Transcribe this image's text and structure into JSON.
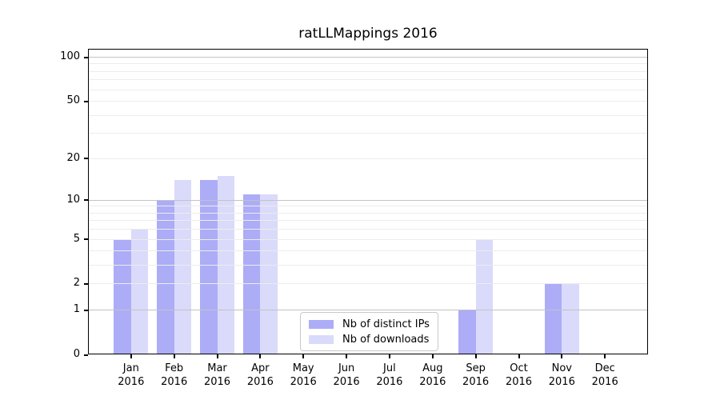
{
  "chart_data": {
    "type": "bar",
    "title": "ratLLMappings 2016",
    "categories": [
      "Jan",
      "Feb",
      "Mar",
      "Apr",
      "May",
      "Jun",
      "Jul",
      "Aug",
      "Sep",
      "Oct",
      "Nov",
      "Dec"
    ],
    "x_year": "2016",
    "series": [
      {
        "name": "Nb of distinct IPs",
        "color": "rgba(79,79,238,0.47)",
        "values": [
          5,
          10,
          14,
          11,
          0,
          0,
          0,
          0,
          1,
          0,
          2,
          0
        ]
      },
      {
        "name": "Nb of downloads",
        "color": "rgba(79,79,238,0.21)",
        "values": [
          6,
          14,
          15,
          11,
          0,
          0,
          0,
          0,
          5,
          0,
          2,
          0
        ]
      }
    ],
    "y_scale": "log1p",
    "ylim": [
      0,
      113.3
    ],
    "y_ticks": [
      0,
      1,
      2,
      5,
      10,
      20,
      50,
      100
    ],
    "y_grid_major": [
      1,
      10,
      100
    ],
    "y_grid_minor": [
      2,
      3,
      4,
      5,
      6,
      7,
      8,
      9,
      20,
      30,
      40,
      50,
      60,
      70,
      80,
      90
    ],
    "grid_major_color": "#c3c3c3",
    "grid_minor_color": "#ececec",
    "legend": {
      "position": "lower center"
    }
  }
}
